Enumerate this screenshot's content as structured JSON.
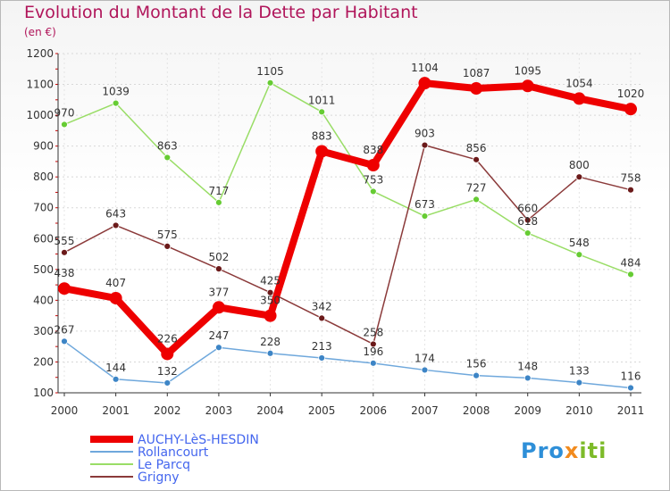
{
  "header": {
    "title": "Evolution du Montant de la Dette par Habitant",
    "unit": "(en €)"
  },
  "logo": {
    "part1": "Pro",
    "part2": "x",
    "part3": "iti"
  },
  "chart_data": {
    "type": "line",
    "title": "Evolution du Montant de la Dette par Habitant",
    "ylabel": "(en €)",
    "xlabel": "",
    "x": [
      "2000",
      "2001",
      "2002",
      "2003",
      "2004",
      "2005",
      "2006",
      "2007",
      "2008",
      "2009",
      "2010",
      "2011"
    ],
    "ylim": [
      100,
      1200
    ],
    "yticks": [
      100,
      200,
      300,
      400,
      500,
      600,
      700,
      800,
      900,
      1000,
      1100,
      1200
    ],
    "legend_position": "bottom-left",
    "series": [
      {
        "name": "AUCHY-LèS-HESDIN",
        "color": "#ee0000",
        "marker_color": "#ee0000",
        "emphasis": true,
        "values": [
          438,
          407,
          226,
          377,
          350,
          883,
          838,
          1104,
          1087,
          1095,
          1054,
          1020
        ],
        "labels": [
          "438",
          "407",
          "226",
          "377",
          "350",
          "883",
          "838",
          "1104",
          "1087",
          "1095",
          "1054",
          "1020"
        ]
      },
      {
        "name": "Rollancourt",
        "color": "#6fa8dc",
        "marker_color": "#3d85c6",
        "emphasis": false,
        "values": [
          267,
          144,
          132,
          247,
          228,
          213,
          196,
          174,
          156,
          148,
          133,
          116
        ],
        "labels": [
          "267",
          "144",
          "132",
          "247",
          "228",
          "213",
          "196",
          "174",
          "156",
          "148",
          "133",
          "116"
        ]
      },
      {
        "name": "Le Parcq",
        "color": "#99dd66",
        "marker_color": "#66cc33",
        "emphasis": false,
        "values": [
          970,
          1039,
          863,
          717,
          1105,
          1011,
          753,
          673,
          727,
          618,
          548,
          484
        ],
        "labels": [
          "970",
          "1039",
          "863",
          "717",
          "1105",
          "1011",
          "753",
          "673",
          "727",
          "618",
          "548",
          "484"
        ]
      },
      {
        "name": "Grigny",
        "color": "#8b3a3a",
        "marker_color": "#6b1a1a",
        "emphasis": false,
        "values": [
          555,
          643,
          575,
          502,
          425,
          342,
          258,
          903,
          856,
          660,
          800,
          758
        ],
        "labels": [
          "555",
          "643",
          "575",
          "502",
          "425",
          "342",
          "258",
          "903",
          "856",
          "660",
          "800",
          "758"
        ]
      }
    ]
  }
}
